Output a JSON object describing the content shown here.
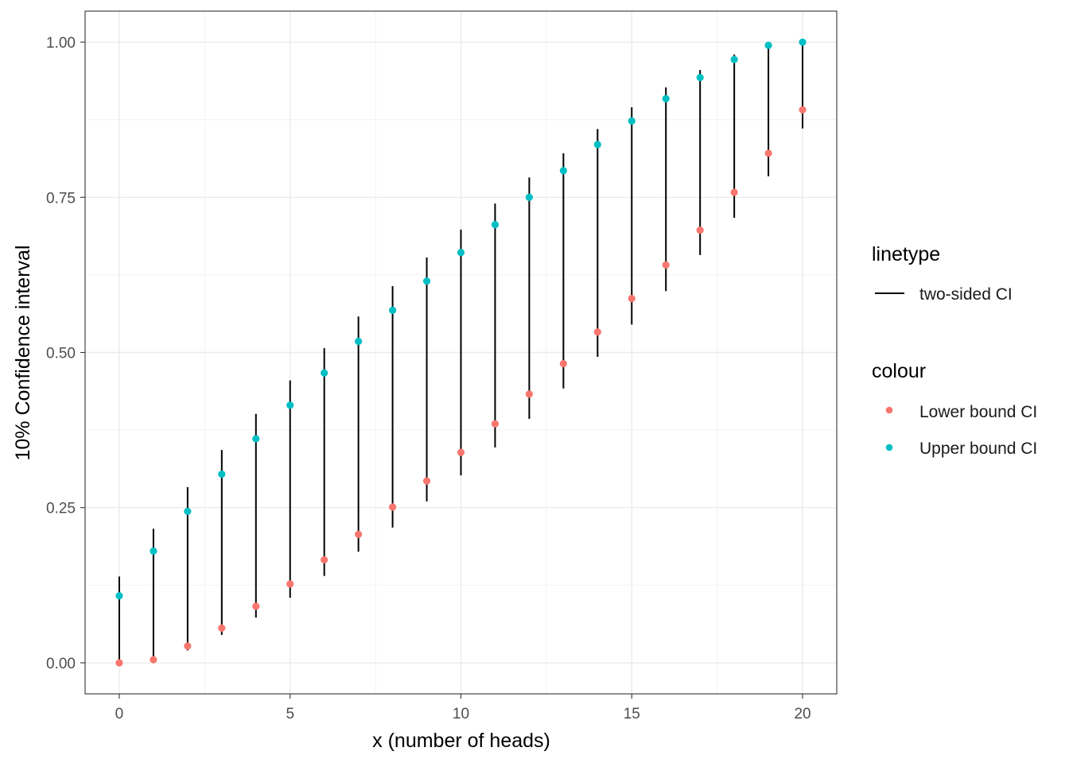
{
  "chart_data": {
    "type": "scatter",
    "xlabel": "x (number of heads)",
    "ylabel": "10% Confidence interval",
    "xlim": [
      -1,
      21
    ],
    "ylim": [
      -0.05,
      1.05
    ],
    "x_ticks": [
      0,
      5,
      10,
      15,
      20
    ],
    "x_tick_labels": [
      "0",
      "5",
      "10",
      "15",
      "20"
    ],
    "y_ticks": [
      0,
      0.25,
      0.5,
      0.75,
      1
    ],
    "y_tick_labels": [
      "0.00",
      "0.25",
      "0.50",
      "0.75",
      "1.00"
    ],
    "grid": true,
    "theme": "bw",
    "x": [
      0,
      1,
      2,
      3,
      4,
      5,
      6,
      7,
      8,
      9,
      10,
      11,
      12,
      13,
      14,
      15,
      16,
      17,
      18,
      19,
      20
    ],
    "intervals": {
      "name": "two-sided CI",
      "lower": [
        0.0,
        0.002,
        0.02,
        0.045,
        0.073,
        0.105,
        0.14,
        0.179,
        0.218,
        0.26,
        0.302,
        0.347,
        0.393,
        0.442,
        0.493,
        0.545,
        0.599,
        0.657,
        0.717,
        0.784,
        0.861
      ],
      "upper": [
        0.139,
        0.216,
        0.283,
        0.343,
        0.401,
        0.455,
        0.507,
        0.558,
        0.607,
        0.653,
        0.698,
        0.74,
        0.782,
        0.821,
        0.86,
        0.895,
        0.927,
        0.955,
        0.98,
        0.998,
        1.0
      ]
    },
    "series": [
      {
        "name": "Lower bound CI",
        "color": "#F8766D",
        "values": [
          0.0,
          0.005,
          0.027,
          0.056,
          0.091,
          0.127,
          0.166,
          0.207,
          0.251,
          0.293,
          0.339,
          0.385,
          0.433,
          0.482,
          0.533,
          0.587,
          0.641,
          0.697,
          0.758,
          0.821,
          0.891
        ]
      },
      {
        "name": "Upper bound CI",
        "color": "#00BFC4",
        "values": [
          0.108,
          0.18,
          0.244,
          0.304,
          0.361,
          0.415,
          0.467,
          0.518,
          0.568,
          0.615,
          0.661,
          0.706,
          0.75,
          0.793,
          0.835,
          0.873,
          0.909,
          0.943,
          0.972,
          0.995,
          1.0
        ]
      }
    ],
    "legend": {
      "position": "right",
      "linetype_title": "linetype",
      "linetype_label": "two-sided CI",
      "colour_title": "colour",
      "colour_labels": [
        "Lower bound CI",
        "Upper bound CI"
      ]
    }
  }
}
